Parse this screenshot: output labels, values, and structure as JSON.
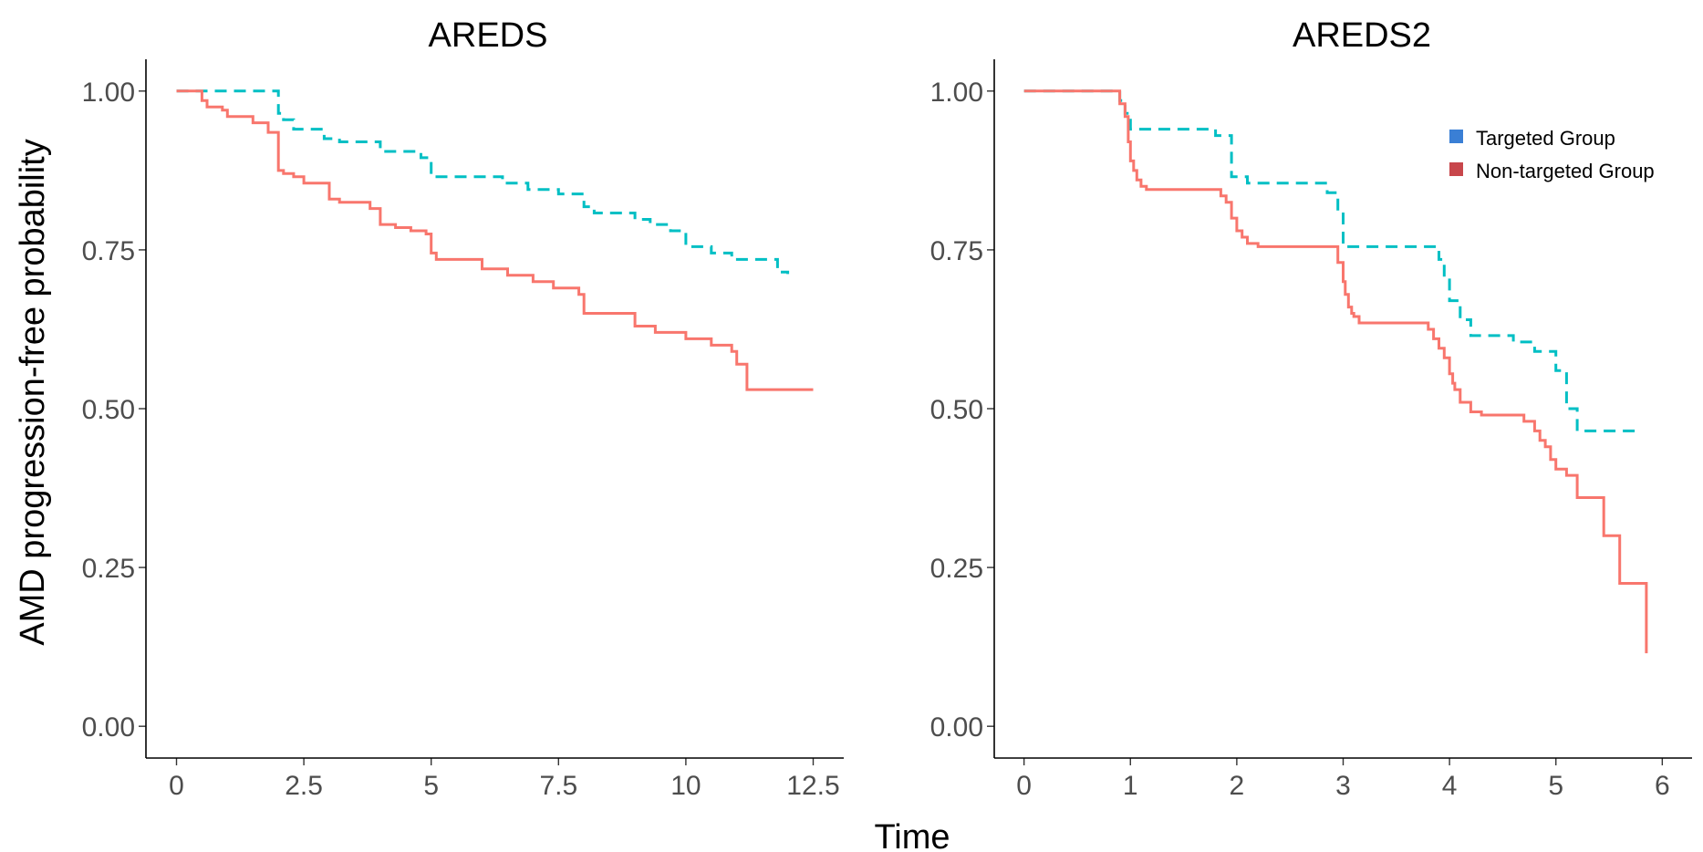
{
  "figure": {
    "xlabel": "Time",
    "ylabel": "AMD progression-free probability"
  },
  "legend": {
    "placement": "top-right of AREDS2 panel",
    "entries": [
      {
        "label": "Targeted Group",
        "color": "#3a7fd5"
      },
      {
        "label": "Non-targeted Group",
        "color": "#c8464b"
      }
    ]
  },
  "chart_data": [
    {
      "type": "line",
      "title": "AREDS",
      "xlabel": "Time",
      "ylabel": "AMD progression-free probability",
      "xlim": [
        -0.6,
        13.1
      ],
      "ylim": [
        -0.05,
        1.05
      ],
      "x_ticks": [
        0,
        2.5,
        5,
        7.5,
        10,
        12.5
      ],
      "x_tick_labels": [
        "0",
        "2.5",
        "5",
        "7.5",
        "10",
        "12.5"
      ],
      "y_ticks": [
        0,
        0.25,
        0.5,
        0.75,
        1
      ],
      "y_tick_labels": [
        "0.00",
        "0.25",
        "0.50",
        "0.75",
        "1.00"
      ],
      "grid": false,
      "series": [
        {
          "color": "#00bfc4",
          "dash": "dashed",
          "step": true,
          "x": [
            0,
            2.0,
            2.1,
            2.3,
            2.9,
            3.2,
            4.0,
            4.4,
            4.8,
            5.0,
            6.4,
            6.9,
            7.5,
            8.0,
            8.2,
            9.0,
            9.3,
            9.7,
            10.0,
            10.5,
            10.9,
            11.8,
            12.0
          ],
          "y": [
            1.0,
            0.965,
            0.955,
            0.94,
            0.925,
            0.92,
            0.905,
            0.905,
            0.895,
            0.865,
            0.855,
            0.845,
            0.838,
            0.818,
            0.808,
            0.798,
            0.79,
            0.78,
            0.755,
            0.745,
            0.735,
            0.715,
            0.712
          ]
        },
        {
          "color": "#f8766d",
          "dash": "solid",
          "step": true,
          "x": [
            0,
            0.5,
            0.6,
            0.9,
            1.0,
            1.5,
            1.8,
            1.9,
            2.0,
            2.1,
            2.3,
            2.5,
            3.0,
            3.2,
            3.8,
            4.0,
            4.3,
            4.6,
            4.9,
            5.0,
            5.1,
            6.0,
            6.5,
            7.0,
            7.4,
            7.9,
            8.0,
            8.5,
            9.0,
            9.4,
            9.6,
            10.0,
            10.5,
            10.9,
            11.0,
            11.2,
            12.5
          ],
          "y": [
            1.0,
            0.985,
            0.975,
            0.97,
            0.96,
            0.95,
            0.935,
            0.935,
            0.875,
            0.87,
            0.865,
            0.855,
            0.83,
            0.825,
            0.815,
            0.79,
            0.785,
            0.78,
            0.775,
            0.745,
            0.735,
            0.72,
            0.71,
            0.7,
            0.69,
            0.68,
            0.65,
            0.65,
            0.63,
            0.62,
            0.62,
            0.61,
            0.6,
            0.59,
            0.57,
            0.53,
            0.53
          ]
        }
      ]
    },
    {
      "type": "line",
      "title": "AREDS2",
      "xlabel": "Time",
      "ylabel": "AMD progression-free probability",
      "xlim": [
        -0.28,
        6.28
      ],
      "ylim": [
        -0.05,
        1.05
      ],
      "x_ticks": [
        0,
        1,
        2,
        3,
        4,
        5,
        6
      ],
      "x_tick_labels": [
        "0",
        "1",
        "2",
        "3",
        "4",
        "5",
        "6"
      ],
      "y_ticks": [
        0,
        0.25,
        0.5,
        0.75,
        1
      ],
      "y_tick_labels": [
        "0.00",
        "0.25",
        "0.50",
        "0.75",
        "1.00"
      ],
      "grid": false,
      "series": [
        {
          "name": "Targeted Group",
          "color": "#00bfc4",
          "dash": "dashed",
          "step": true,
          "x": [
            0,
            0.9,
            0.95,
            1.0,
            1.8,
            1.95,
            2.1,
            2.85,
            2.95,
            3.0,
            3.9,
            3.95,
            4.0,
            4.1,
            4.2,
            4.6,
            4.8,
            5.0,
            5.1,
            5.2,
            5.8
          ],
          "y": [
            1.0,
            0.985,
            0.965,
            0.94,
            0.93,
            0.865,
            0.855,
            0.84,
            0.81,
            0.755,
            0.735,
            0.705,
            0.67,
            0.64,
            0.615,
            0.605,
            0.59,
            0.56,
            0.5,
            0.465,
            0.465
          ]
        },
        {
          "name": "Non-targeted Group",
          "color": "#f8766d",
          "dash": "solid",
          "step": true,
          "x": [
            0,
            0.9,
            0.95,
            0.98,
            1.0,
            1.03,
            1.06,
            1.1,
            1.15,
            1.2,
            1.85,
            1.9,
            1.95,
            2.0,
            2.05,
            2.1,
            2.2,
            2.95,
            3.0,
            3.02,
            3.05,
            3.08,
            3.1,
            3.15,
            3.2,
            3.3,
            3.8,
            3.85,
            3.9,
            3.95,
            4.0,
            4.03,
            4.05,
            4.1,
            4.2,
            4.3,
            4.7,
            4.8,
            4.85,
            4.9,
            4.95,
            5.0,
            5.1,
            5.2,
            5.45,
            5.6,
            5.85
          ],
          "y": [
            1.0,
            0.98,
            0.96,
            0.92,
            0.89,
            0.875,
            0.86,
            0.85,
            0.845,
            0.845,
            0.835,
            0.825,
            0.8,
            0.78,
            0.77,
            0.76,
            0.755,
            0.73,
            0.7,
            0.68,
            0.66,
            0.65,
            0.645,
            0.635,
            0.635,
            0.635,
            0.625,
            0.61,
            0.595,
            0.58,
            0.555,
            0.54,
            0.53,
            0.51,
            0.495,
            0.49,
            0.48,
            0.465,
            0.45,
            0.44,
            0.42,
            0.405,
            0.395,
            0.36,
            0.3,
            0.225,
            0.115
          ]
        }
      ]
    }
  ]
}
